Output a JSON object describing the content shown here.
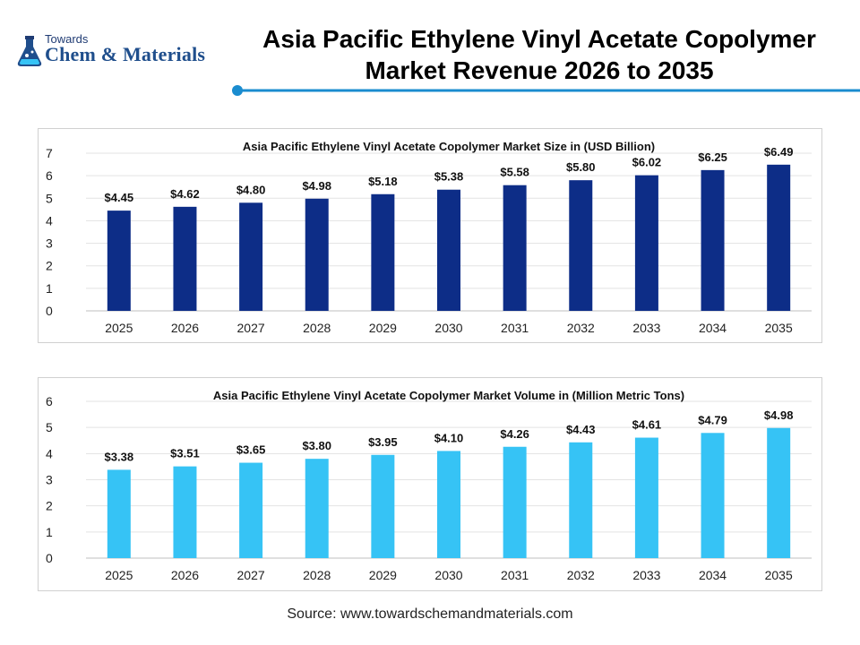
{
  "header": {
    "logo_small": "Towards",
    "logo_main": "Chem & Materials",
    "logo_icon": "flask-icon",
    "title_line1": "Asia Pacific Ethylene Vinyl Acetate Copolymer",
    "title_line2": "Market Revenue 2026 to 2035"
  },
  "footer": {
    "source": "Source: www.towardschemandmaterials.com"
  },
  "colors": {
    "accent": "#1a8ccf",
    "series1": "#0d2d87",
    "series2": "#36c3f5"
  },
  "chart_data": [
    {
      "type": "bar",
      "title": "Asia Pacific Ethylene Vinyl Acetate Copolymer Market Size in (USD Billion)",
      "categories": [
        "2025",
        "2026",
        "2027",
        "2028",
        "2029",
        "2030",
        "2031",
        "2032",
        "2033",
        "2034",
        "2035"
      ],
      "values": [
        4.45,
        4.62,
        4.8,
        4.98,
        5.18,
        5.38,
        5.58,
        5.8,
        6.02,
        6.25,
        6.49
      ],
      "data_labels": [
        "$4.45",
        "$4.62",
        "$4.80",
        "$4.98",
        "$5.18",
        "$5.38",
        "$5.58",
        "$5.80",
        "$6.02",
        "$6.25",
        "$6.49"
      ],
      "yticks": [
        "0",
        "1",
        "2",
        "3",
        "4",
        "5",
        "6",
        "7"
      ],
      "ylim": [
        0,
        7
      ],
      "xlabel": "",
      "ylabel": "",
      "grid": true,
      "legend": "none"
    },
    {
      "type": "bar",
      "title": "Asia Pacific Ethylene Vinyl Acetate Copolymer Market Volume in (Million Metric Tons)",
      "categories": [
        "2025",
        "2026",
        "2027",
        "2028",
        "2029",
        "2030",
        "2031",
        "2032",
        "2033",
        "2034",
        "2035"
      ],
      "values": [
        3.38,
        3.51,
        3.65,
        3.8,
        3.95,
        4.1,
        4.26,
        4.43,
        4.61,
        4.79,
        4.98
      ],
      "data_labels": [
        "$3.38",
        "$3.51",
        "$3.65",
        "$3.80",
        "$3.95",
        "$4.10",
        "$4.26",
        "$4.43",
        "$4.61",
        "$4.79",
        "$4.98"
      ],
      "yticks": [
        "0",
        "1",
        "2",
        "3",
        "4",
        "5",
        "6"
      ],
      "ylim": [
        0,
        6
      ],
      "xlabel": "",
      "ylabel": "",
      "grid": true,
      "legend": "none"
    }
  ]
}
